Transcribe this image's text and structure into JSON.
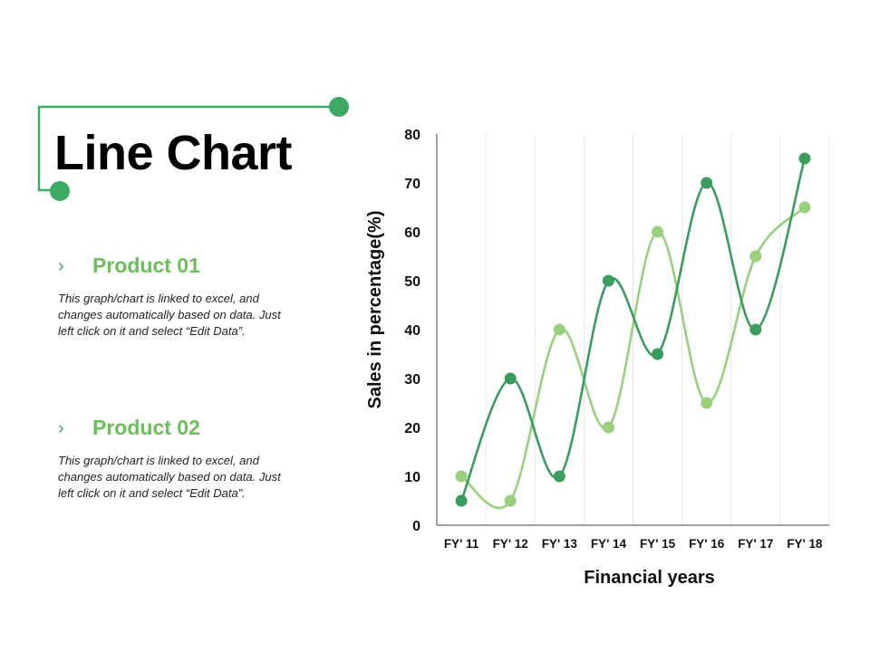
{
  "page": {
    "title": "Line Chart"
  },
  "products": [
    {
      "name": "Product 01",
      "description": "This graph/chart is linked to excel, and changes automatically based on data. Just left click on it and select “Edit Data”."
    },
    {
      "name": "Product 02",
      "description": "This graph/chart is linked to excel, and changes automatically based on data. Just left click on it and select “Edit Data”."
    }
  ],
  "icons": {
    "bullet": "chevron-right-icon"
  },
  "colors": {
    "dark_green": "#3a9d5d",
    "light_green": "#99d07c",
    "accent": "#3daa63"
  },
  "chart_data": {
    "type": "line",
    "categories": [
      "FY' 11",
      "FY' 12",
      "FY' 13",
      "FY' 14",
      "FY' 15",
      "FY' 16",
      "FY' 17",
      "FY' 18"
    ],
    "series": [
      {
        "values": [
          5,
          30,
          10,
          50,
          35,
          70,
          40,
          75
        ],
        "color": "#3a9d5d"
      },
      {
        "values": [
          10,
          5,
          40,
          20,
          60,
          25,
          55,
          65
        ],
        "color": "#99d07c"
      }
    ],
    "ylim": [
      0,
      80
    ],
    "yticks": [
      "0",
      "10",
      "20",
      "30",
      "40",
      "50",
      "60",
      "70",
      "80"
    ],
    "xlabel": "Financial years",
    "ylabel": "Sales in percentage(%)",
    "smooth": true,
    "grid": "vertical"
  }
}
